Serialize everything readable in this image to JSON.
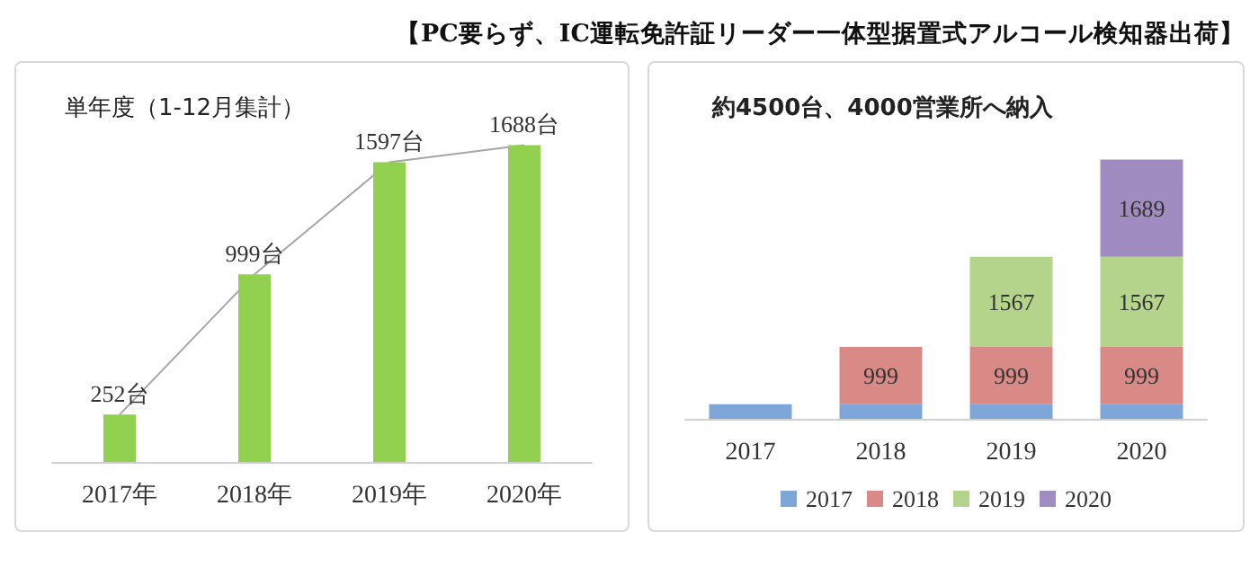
{
  "chart_data": [
    {
      "type": "bar",
      "title": "【PC要らず、IC運転免許証リーダー一体型据置式アルコール検知器出荷】",
      "subtitle": "単年度（1-12月集計）",
      "categories": [
        "2017年",
        "2018年",
        "2019年",
        "2020年"
      ],
      "legend": false,
      "series": [
        {
          "color": "#92d050",
          "values": [
            252,
            999,
            1597,
            1688
          ],
          "value_labels": [
            "252台",
            "999台",
            "1597台",
            "1688台"
          ]
        },
        {
          "type": "line",
          "color": "#a6a6a6",
          "values": [
            252,
            999,
            1597,
            1688
          ]
        }
      ]
    },
    {
      "type": "bar",
      "title": "約4500台、4000営業所へ納入",
      "categories": [
        "2017",
        "2018",
        "2019",
        "2020"
      ],
      "stacked": true,
      "legend": "bottom",
      "series": [
        {
          "name": "2017",
          "color": "#7ea6d8",
          "values": [
            252,
            252,
            252,
            252
          ],
          "value_labels": [
            null,
            null,
            null,
            null
          ]
        },
        {
          "name": "2018",
          "color": "#d98a86",
          "values": [
            null,
            999,
            999,
            999
          ],
          "value_labels": [
            null,
            "999",
            "999",
            "999"
          ]
        },
        {
          "name": "2019",
          "color": "#b5d48b",
          "values": [
            null,
            null,
            1567,
            1567
          ],
          "value_labels": [
            null,
            null,
            "1567",
            "1567"
          ]
        },
        {
          "name": "2020",
          "color": "#a08cc0",
          "values": [
            null,
            null,
            null,
            1689
          ],
          "value_labels": [
            null,
            null,
            null,
            "1689"
          ]
        }
      ]
    }
  ]
}
